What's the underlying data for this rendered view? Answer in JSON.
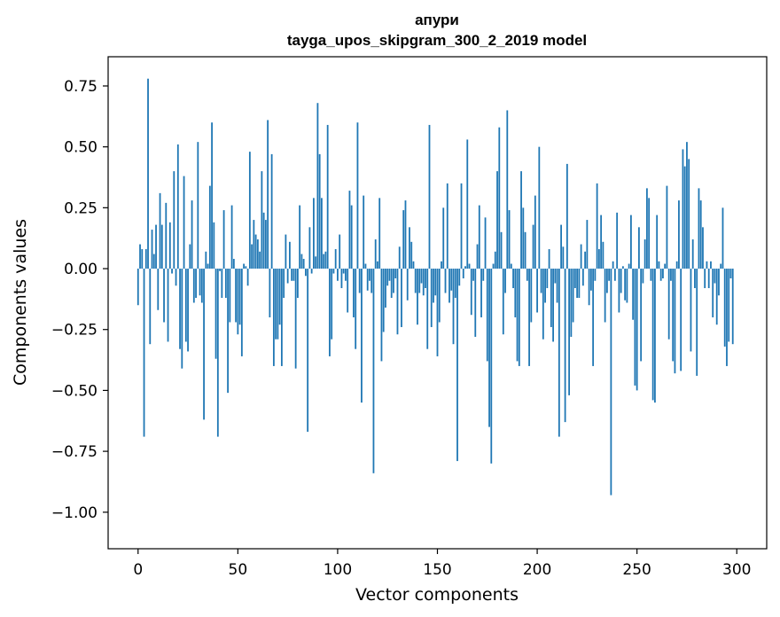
{
  "chart_data": {
    "type": "bar",
    "title": "апури",
    "subtitle": "tayga_upos_skipgram_300_2_2019 model",
    "xlabel": "Vector components",
    "ylabel": "Components values",
    "xlim": [
      -15,
      315
    ],
    "ylim": [
      -1.15,
      0.87
    ],
    "xticks": [
      0,
      50,
      100,
      150,
      200,
      250,
      300
    ],
    "yticks": [
      0.75,
      0.5,
      0.25,
      0.0,
      -0.25,
      -0.5,
      -0.75,
      -1.0
    ],
    "xtick_labels": [
      "0",
      "50",
      "100",
      "150",
      "200",
      "250",
      "300"
    ],
    "ytick_labels": [
      "0.75",
      "0.50",
      "0.25",
      "0.00",
      "−0.25",
      "−0.50",
      "−0.75",
      "−1.00"
    ],
    "grid": false,
    "bar_color": "#1f77b4",
    "values": [
      -0.15,
      0.1,
      0.08,
      -0.69,
      0.08,
      0.78,
      -0.31,
      0.16,
      0.06,
      0.18,
      -0.17,
      0.31,
      0.18,
      -0.22,
      0.27,
      -0.3,
      0.19,
      -0.02,
      0.4,
      -0.07,
      0.51,
      -0.33,
      -0.41,
      0.38,
      -0.3,
      -0.34,
      0.1,
      0.28,
      -0.14,
      -0.12,
      0.52,
      -0.11,
      -0.14,
      -0.62,
      0.07,
      0.02,
      0.34,
      0.6,
      0.19,
      -0.37,
      -0.69,
      -0.01,
      -0.12,
      0.24,
      -0.12,
      -0.51,
      -0.22,
      0.26,
      0.04,
      -0.22,
      -0.27,
      -0.23,
      -0.36,
      0.02,
      0.01,
      -0.07,
      0.48,
      0.1,
      0.2,
      0.14,
      0.12,
      0.07,
      0.4,
      0.23,
      0.2,
      0.61,
      -0.2,
      0.47,
      -0.4,
      -0.29,
      -0.29,
      -0.23,
      -0.4,
      -0.12,
      0.14,
      -0.06,
      0.11,
      -0.05,
      -0.05,
      -0.41,
      -0.12,
      0.26,
      0.06,
      0.04,
      -0.03,
      -0.67,
      0.17,
      -0.02,
      0.29,
      0.05,
      0.68,
      0.47,
      0.29,
      0.06,
      0.07,
      0.59,
      -0.36,
      -0.29,
      -0.02,
      0.08,
      -0.05,
      0.14,
      -0.08,
      -0.02,
      -0.05,
      -0.18,
      0.32,
      0.26,
      -0.2,
      -0.33,
      0.6,
      -0.1,
      -0.55,
      0.3,
      0.02,
      -0.09,
      -0.05,
      -0.1,
      -0.84,
      0.12,
      0.03,
      0.29,
      -0.38,
      -0.26,
      -0.16,
      -0.07,
      -0.05,
      -0.12,
      -0.1,
      -0.04,
      -0.27,
      0.09,
      -0.24,
      0.24,
      0.28,
      -0.13,
      0.17,
      0.11,
      0.03,
      -0.1,
      -0.23,
      -0.1,
      -0.06,
      -0.11,
      -0.08,
      -0.33,
      0.59,
      -0.24,
      -0.14,
      -0.11,
      -0.36,
      -0.22,
      0.03,
      0.25,
      -0.1,
      0.35,
      -0.14,
      -0.09,
      -0.31,
      -0.12,
      -0.79,
      -0.07,
      0.35,
      -0.04,
      0.01,
      0.53,
      0.02,
      -0.19,
      -0.05,
      -0.28,
      0.1,
      0.26,
      -0.2,
      -0.05,
      0.21,
      -0.38,
      -0.65,
      -0.8,
      0.02,
      0.07,
      0.4,
      0.58,
      0.15,
      -0.27,
      -0.1,
      0.65,
      0.24,
      0.02,
      -0.08,
      -0.2,
      -0.38,
      -0.4,
      0.4,
      0.25,
      0.15,
      -0.05,
      -0.4,
      -0.22,
      0.18,
      0.3,
      -0.18,
      0.5,
      -0.1,
      -0.29,
      -0.14,
      -0.08,
      0.08,
      -0.24,
      -0.3,
      -0.06,
      -0.14,
      -0.69,
      0.18,
      0.09,
      -0.63,
      0.43,
      -0.52,
      -0.28,
      -0.22,
      -0.08,
      -0.12,
      -0.12,
      0.1,
      -0.07,
      0.07,
      0.2,
      -0.15,
      -0.09,
      -0.4,
      -0.05,
      0.35,
      0.08,
      0.22,
      0.11,
      -0.22,
      -0.1,
      -0.05,
      -0.93,
      0.03,
      -0.05,
      0.23,
      -0.18,
      -0.1,
      0.01,
      -0.13,
      -0.14,
      0.02,
      0.22,
      -0.21,
      -0.48,
      -0.5,
      0.17,
      -0.38,
      -0.06,
      0.12,
      0.33,
      0.29,
      -0.05,
      -0.54,
      -0.55,
      0.22,
      0.03,
      -0.05,
      -0.04,
      0.02,
      0.34,
      -0.29,
      -0.05,
      -0.38,
      -0.43,
      0.03,
      0.28,
      -0.42,
      0.49,
      0.42,
      0.52,
      0.45,
      -0.34,
      0.12,
      -0.08,
      -0.44,
      0.33,
      0.28,
      0.17,
      -0.08,
      0.03,
      -0.08,
      0.03,
      -0.2,
      -0.06,
      -0.23,
      -0.11,
      0.02,
      0.25,
      -0.32,
      -0.4,
      -0.3,
      -0.04,
      -0.31
    ]
  }
}
